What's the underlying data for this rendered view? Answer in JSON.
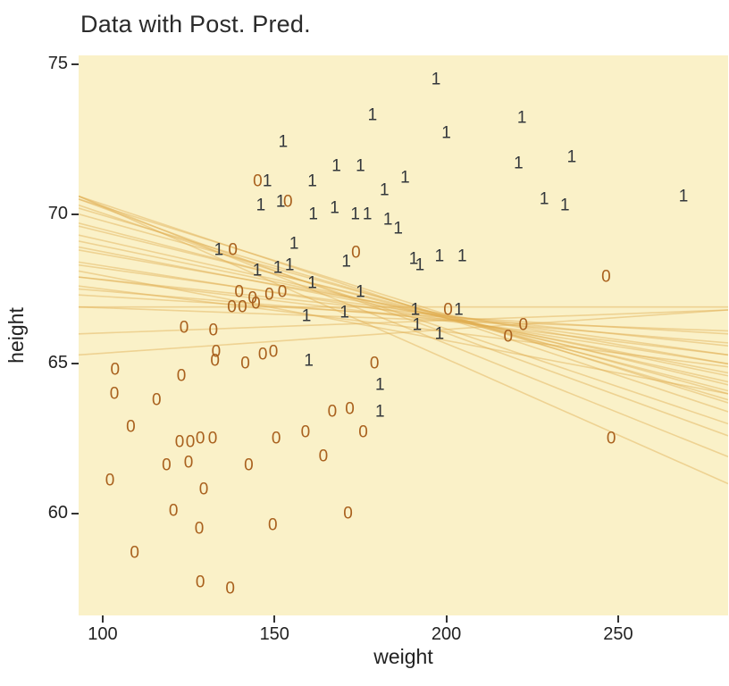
{
  "chart_data": {
    "type": "scatter",
    "title": "Data with Post. Pred.",
    "xlabel": "weight",
    "ylabel": "height",
    "xlim": [
      93,
      282
    ],
    "ylim": [
      56.6,
      75.3
    ],
    "x_ticks": [
      "100",
      "150",
      "200",
      "250"
    ],
    "x_tick_values": [
      100,
      150,
      200,
      250
    ],
    "y_ticks": [
      "60",
      "65",
      "70",
      "75"
    ],
    "y_tick_values": [
      60,
      65,
      70,
      75
    ],
    "grid": false,
    "legend": "none",
    "panel_color": "#faf1c8",
    "tick_color": "#333333",
    "series": [
      {
        "name": "group-1",
        "glyph": "1",
        "color": "#33373b",
        "points": [
          [
            197.0,
            74.5
          ],
          [
            178.5,
            73.3
          ],
          [
            200.0,
            72.7
          ],
          [
            222.0,
            73.2
          ],
          [
            152.5,
            72.4
          ],
          [
            221.0,
            71.7
          ],
          [
            236.5,
            71.9
          ],
          [
            168.0,
            71.6
          ],
          [
            175.0,
            71.6
          ],
          [
            161.0,
            71.1
          ],
          [
            147.9,
            71.1
          ],
          [
            182.0,
            70.8
          ],
          [
            188.0,
            71.2
          ],
          [
            269.0,
            70.6
          ],
          [
            228.5,
            70.5
          ],
          [
            234.5,
            70.3
          ],
          [
            146.0,
            70.3
          ],
          [
            151.8,
            70.4
          ],
          [
            161.3,
            70.0
          ],
          [
            167.5,
            70.2
          ],
          [
            173.5,
            70.0
          ],
          [
            177.0,
            70.0
          ],
          [
            183.0,
            69.8
          ],
          [
            186.0,
            69.5
          ],
          [
            133.8,
            68.8
          ],
          [
            155.7,
            69.0
          ],
          [
            170.9,
            68.4
          ],
          [
            190.5,
            68.5
          ],
          [
            192.3,
            68.3
          ],
          [
            198.0,
            68.6
          ],
          [
            204.6,
            68.6
          ],
          [
            145.0,
            68.1
          ],
          [
            151.0,
            68.2
          ],
          [
            154.4,
            68.3
          ],
          [
            161.0,
            67.7
          ],
          [
            175.0,
            67.4
          ],
          [
            159.3,
            66.6
          ],
          [
            170.4,
            66.7
          ],
          [
            191.0,
            66.8
          ],
          [
            203.6,
            66.8
          ],
          [
            191.5,
            66.3
          ],
          [
            198.0,
            66.0
          ],
          [
            160.0,
            65.1
          ],
          [
            180.7,
            64.3
          ],
          [
            180.7,
            63.4
          ]
        ]
      },
      {
        "name": "group-0",
        "glyph": "0",
        "color": "#a9611e",
        "points": [
          [
            145.1,
            71.1
          ],
          [
            153.9,
            70.4
          ],
          [
            137.9,
            68.8
          ],
          [
            173.7,
            68.7
          ],
          [
            246.5,
            67.9
          ],
          [
            139.7,
            67.4
          ],
          [
            143.6,
            67.2
          ],
          [
            148.5,
            67.3
          ],
          [
            152.3,
            67.4
          ],
          [
            137.6,
            66.9
          ],
          [
            140.7,
            66.9
          ],
          [
            144.6,
            67.0
          ],
          [
            200.5,
            66.8
          ],
          [
            218.0,
            65.9
          ],
          [
            222.4,
            66.3
          ],
          [
            123.7,
            66.2
          ],
          [
            132.2,
            66.1
          ],
          [
            133.0,
            65.4
          ],
          [
            146.6,
            65.3
          ],
          [
            149.7,
            65.4
          ],
          [
            141.5,
            65.0
          ],
          [
            179.1,
            65.0
          ],
          [
            103.6,
            64.8
          ],
          [
            122.9,
            64.6
          ],
          [
            132.7,
            65.1
          ],
          [
            103.4,
            64.0
          ],
          [
            115.7,
            63.8
          ],
          [
            166.8,
            63.4
          ],
          [
            171.9,
            63.5
          ],
          [
            108.2,
            62.9
          ],
          [
            150.5,
            62.5
          ],
          [
            159.0,
            62.7
          ],
          [
            175.8,
            62.7
          ],
          [
            122.4,
            62.4
          ],
          [
            125.5,
            62.4
          ],
          [
            128.4,
            62.5
          ],
          [
            132.0,
            62.5
          ],
          [
            118.6,
            61.6
          ],
          [
            125.0,
            61.7
          ],
          [
            142.5,
            61.6
          ],
          [
            164.2,
            61.9
          ],
          [
            102.1,
            61.1
          ],
          [
            129.4,
            60.8
          ],
          [
            120.6,
            60.1
          ],
          [
            171.4,
            60.0
          ],
          [
            149.5,
            59.6
          ],
          [
            128.1,
            59.5
          ],
          [
            109.3,
            58.7
          ],
          [
            128.4,
            57.7
          ],
          [
            137.1,
            57.5
          ],
          [
            248.0,
            62.5
          ]
        ]
      }
    ],
    "posterior_lines": {
      "description": "posterior predictive regression lines, endpoints given at xlim as [y_left, y_right]",
      "color": "#dfae4f",
      "opacity": 0.45,
      "stroke_width": 1.6,
      "x_span": [
        93,
        282
      ],
      "segments": [
        [
          65.3,
          66.8
        ],
        [
          66.0,
          66.8
        ],
        [
          66.9,
          66.9
        ],
        [
          66.9,
          66.1
        ],
        [
          67.3,
          66.0
        ],
        [
          67.5,
          65.7
        ],
        [
          67.9,
          65.6
        ],
        [
          67.9,
          65.3
        ],
        [
          68.3,
          65.3
        ],
        [
          68.4,
          65.0
        ],
        [
          68.8,
          65.0
        ],
        [
          68.9,
          64.7
        ],
        [
          69.1,
          64.6
        ],
        [
          69.3,
          64.4
        ],
        [
          69.6,
          64.3
        ],
        [
          69.7,
          64.1
        ],
        [
          70.0,
          64.0
        ],
        [
          70.2,
          63.8
        ],
        [
          70.5,
          63.7
        ],
        [
          70.6,
          63.4
        ],
        [
          70.3,
          63.0
        ],
        [
          70.5,
          62.6
        ],
        [
          70.6,
          61.9
        ],
        [
          70.6,
          61.0
        ],
        [
          68.1,
          64.0
        ],
        [
          67.6,
          64.9
        ]
      ]
    }
  }
}
